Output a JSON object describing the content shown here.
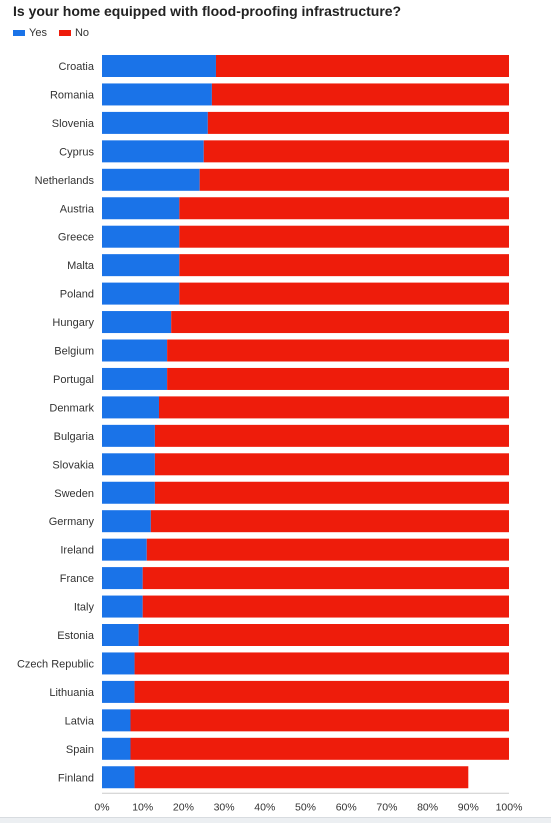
{
  "chart_data": {
    "type": "bar",
    "orientation": "horizontal",
    "stacked": true,
    "title": "Is your home equipped with flood-proofing infrastructure?",
    "xlabel": "",
    "ylabel": "",
    "xlim": [
      0,
      100
    ],
    "x_tick_labels": [
      "0%",
      "10%",
      "20%",
      "30%",
      "40%",
      "50%",
      "60%",
      "70%",
      "80%",
      "90%",
      "100%"
    ],
    "x_ticks": [
      0,
      10,
      20,
      30,
      40,
      50,
      60,
      70,
      80,
      90,
      100
    ],
    "legend_position": "top-left",
    "grid": false,
    "categories": [
      "Croatia",
      "Romania",
      "Slovenia",
      "Cyprus",
      "Netherlands",
      "Austria",
      "Greece",
      "Malta",
      "Poland",
      "Hungary",
      "Belgium",
      "Portugal",
      "Denmark",
      "Bulgaria",
      "Slovakia",
      "Sweden",
      "Germany",
      "Ireland",
      "France",
      "Italy",
      "Estonia",
      "Czech Republic",
      "Lithuania",
      "Latvia",
      "Spain",
      "Finland"
    ],
    "series": [
      {
        "name": "Yes",
        "color": "#1a73e8",
        "values": [
          28,
          27,
          26,
          25,
          24,
          19,
          19,
          19,
          19,
          17,
          16,
          16,
          14,
          13,
          13,
          13,
          12,
          11,
          10,
          10,
          9,
          8,
          8,
          7,
          7,
          8
        ]
      },
      {
        "name": "No",
        "color": "#ee1c0b",
        "values": [
          72,
          73,
          74,
          75,
          76,
          81,
          81,
          81,
          81,
          83,
          84,
          84,
          86,
          87,
          87,
          87,
          88,
          89,
          90,
          90,
          91,
          92,
          92,
          93,
          93,
          82
        ]
      }
    ]
  }
}
